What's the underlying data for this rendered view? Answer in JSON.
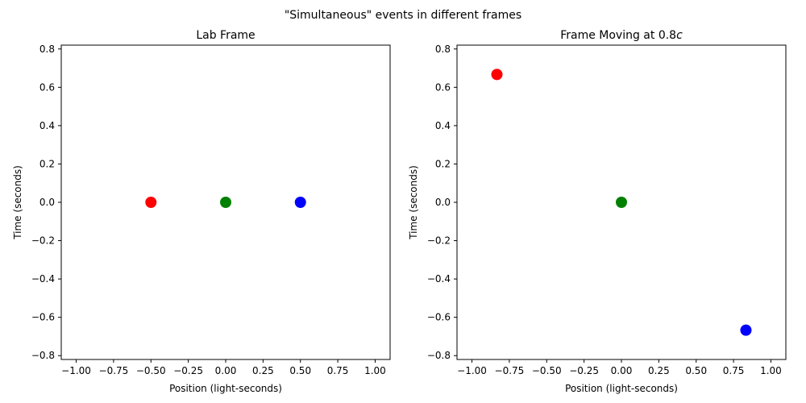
{
  "figure": {
    "title": "\"Simultaneous\" events in different frames"
  },
  "chart_data": [
    {
      "type": "scatter",
      "title": "Lab Frame",
      "xlabel": "Position (light-seconds)",
      "ylabel": "Time (seconds)",
      "xlim": [
        -1.1,
        1.1
      ],
      "ylim": [
        -0.82,
        0.82
      ],
      "xticks": [
        -1.0,
        -0.75,
        -0.5,
        -0.25,
        0.0,
        0.25,
        0.5,
        0.75,
        1.0
      ],
      "yticks": [
        -0.8,
        -0.6,
        -0.4,
        -0.2,
        0.0,
        0.2,
        0.4,
        0.6,
        0.8
      ],
      "grid": false,
      "points": [
        {
          "x": -0.5,
          "y": 0.0,
          "color": "#ff0000"
        },
        {
          "x": 0.0,
          "y": 0.0,
          "color": "#008000"
        },
        {
          "x": 0.5,
          "y": 0.0,
          "color": "#0000ff"
        }
      ]
    },
    {
      "type": "scatter",
      "title": "Frame Moving at 0.8",
      "title_italic_suffix": "c",
      "xlabel": "Position (light-seconds)",
      "ylabel": "Time (seconds)",
      "xlim": [
        -1.1,
        1.1
      ],
      "ylim": [
        -0.82,
        0.82
      ],
      "xticks": [
        -1.0,
        -0.75,
        -0.5,
        -0.25,
        0.0,
        0.25,
        0.5,
        0.75,
        1.0
      ],
      "yticks": [
        -0.8,
        -0.6,
        -0.4,
        -0.2,
        0.0,
        0.2,
        0.4,
        0.6,
        0.8
      ],
      "grid": false,
      "points": [
        {
          "x": -0.833,
          "y": 0.667,
          "color": "#ff0000"
        },
        {
          "x": 0.0,
          "y": 0.0,
          "color": "#008000"
        },
        {
          "x": 0.833,
          "y": -0.667,
          "color": "#0000ff"
        }
      ]
    }
  ]
}
